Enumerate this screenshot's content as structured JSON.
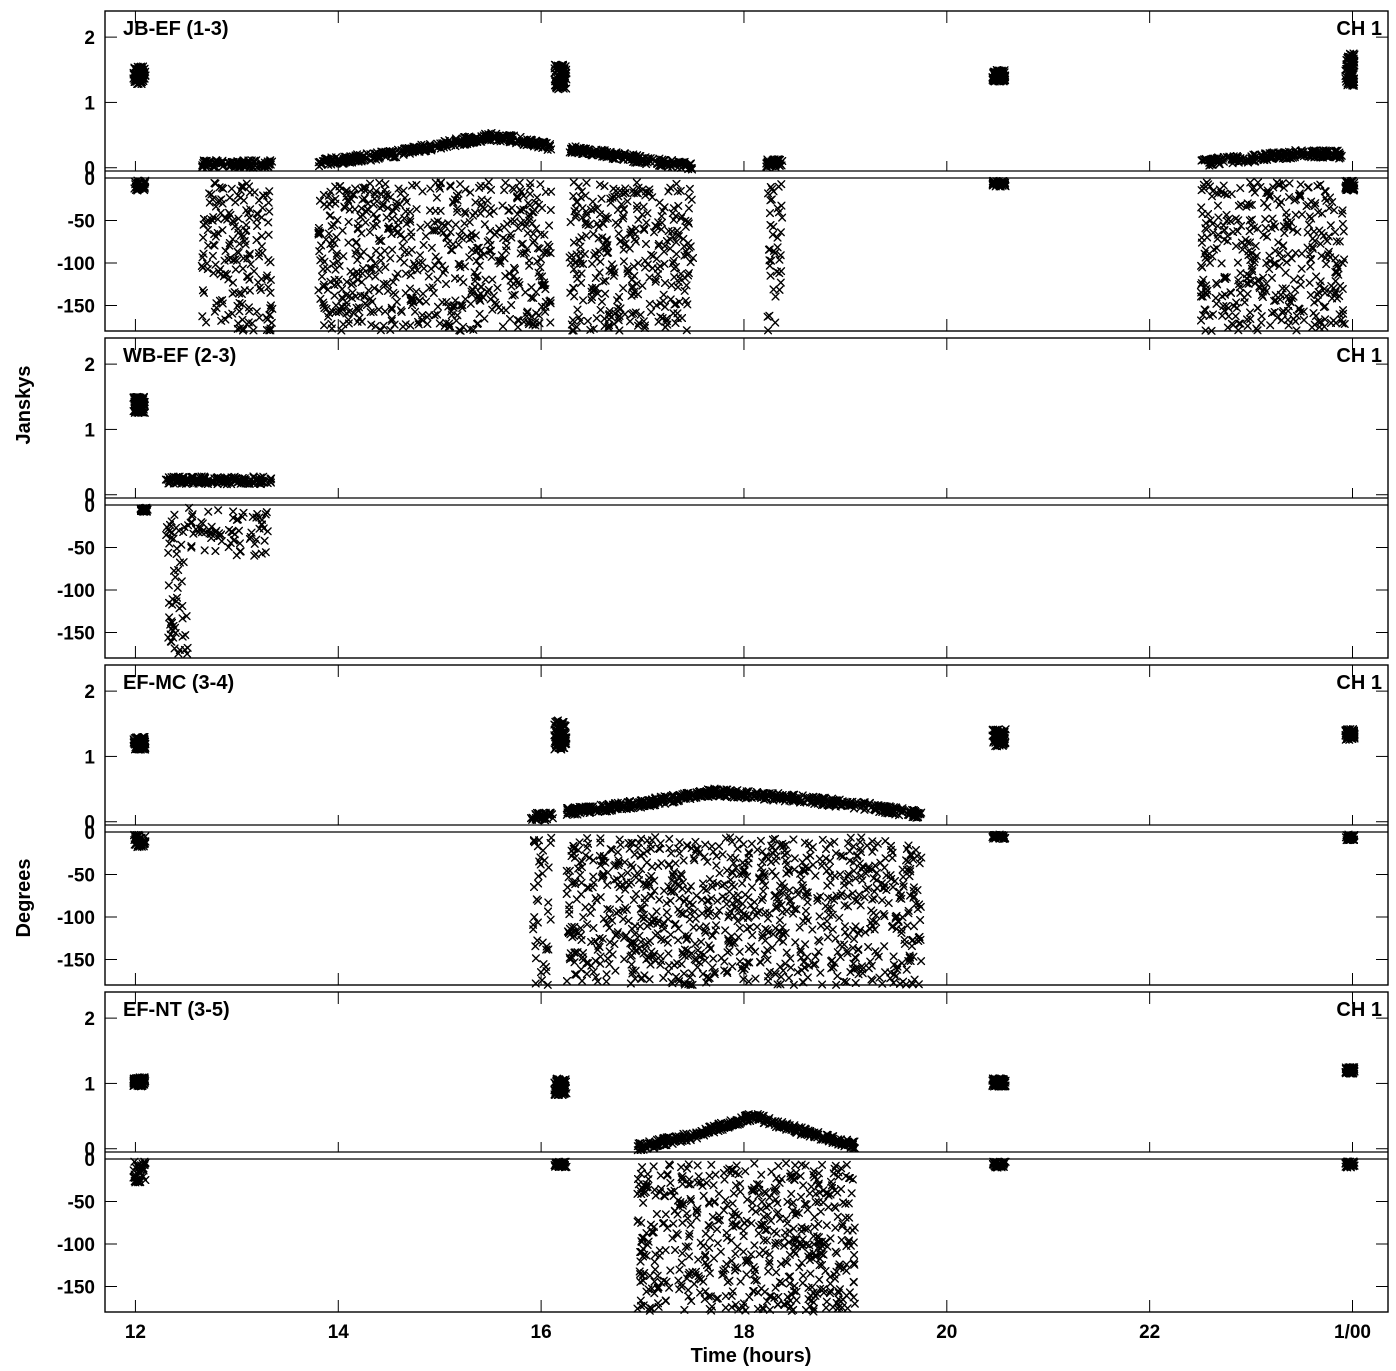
{
  "figure": {
    "xlabel": "Time (hours)",
    "ylabel_top": "Janskys",
    "ylabel_bottom": "Degrees",
    "x_ticks": [
      12,
      14,
      16,
      18,
      20,
      22,
      24
    ],
    "x_tick_labels": [
      "12",
      "14",
      "16",
      "18",
      "20",
      "22",
      "1/00"
    ],
    "x_range": [
      11.7,
      24.35
    ]
  },
  "chart_data": [
    {
      "type": "scatter",
      "title": "JB-EF (1-3)",
      "channel": "CH 1",
      "amplitude": {
        "ylim": [
          -0.05,
          2.4
        ],
        "y_ticks": [
          0,
          1,
          2
        ],
        "groups": [
          {
            "x": [
              11.98,
              12.1
            ],
            "y": [
              1.28,
              1.55
            ]
          },
          {
            "x": [
              16.13,
              16.25
            ],
            "y": [
              1.2,
              1.58
            ]
          },
          {
            "x": [
              20.45,
              20.58
            ],
            "y": [
              1.32,
              1.5
            ]
          },
          {
            "x": [
              23.93,
              24.02
            ],
            "y": [
              1.25,
              1.75
            ]
          }
        ],
        "arcs": [
          {
            "x": [
              12.65,
              13.35
            ],
            "y": [
              0.06,
              0.06
            ]
          },
          {
            "x": [
              13.8,
              14.5,
              15.0,
              15.5,
              15.8,
              16.1
            ],
            "y": [
              0.08,
              0.2,
              0.35,
              0.48,
              0.42,
              0.32
            ]
          },
          {
            "x": [
              16.28,
              16.6,
              17.0,
              17.5
            ],
            "y": [
              0.28,
              0.22,
              0.12,
              0.02
            ]
          },
          {
            "x": [
              18.22,
              18.38
            ],
            "y": [
              0.07,
              0.07
            ]
          },
          {
            "x": [
              22.5,
              23.0,
              23.5,
              23.9
            ],
            "y": [
              0.08,
              0.14,
              0.22,
              0.2
            ]
          }
        ]
      },
      "phase": {
        "ylim": [
          -180,
          0
        ],
        "y_ticks": [
          0,
          -50,
          -100,
          -150
        ],
        "blocks": [
          {
            "x": [
              12.65,
              13.35
            ],
            "y": [
              -180,
              -5
            ]
          },
          {
            "x": [
              13.8,
              16.1
            ],
            "y": [
              -180,
              -5
            ]
          },
          {
            "x": [
              16.28,
              17.5
            ],
            "y": [
              -180,
              -5
            ]
          },
          {
            "x": [
              22.5,
              23.93
            ],
            "y": [
              -180,
              -5
            ]
          }
        ],
        "sparse": [
          {
            "x": [
              18.22,
              18.38
            ],
            "y": [
              -180,
              -5
            ]
          },
          {
            "x": [
              11.98,
              12.1
            ],
            "y": [
              -15,
              -3
            ]
          },
          {
            "x": [
              20.45,
              20.58
            ],
            "y": [
              -10,
              -3
            ]
          },
          {
            "x": [
              23.93,
              24.02
            ],
            "y": [
              -15,
              -3
            ]
          }
        ]
      }
    },
    {
      "type": "scatter",
      "title": "WB-EF (2-3)",
      "channel": "CH 1",
      "amplitude": {
        "ylim": [
          -0.05,
          2.4
        ],
        "y_ticks": [
          0,
          1,
          2
        ],
        "groups": [
          {
            "x": [
              11.98,
              12.1
            ],
            "y": [
              1.25,
              1.5
            ]
          }
        ],
        "arcs": [
          {
            "x": [
              12.3,
              13.35
            ],
            "y": [
              0.22,
              0.22
            ]
          }
        ]
      },
      "phase": {
        "ylim": [
          -180,
          0
        ],
        "y_ticks": [
          0,
          -50,
          -100,
          -150
        ],
        "blocks": [
          {
            "x": [
              12.3,
              13.35
            ],
            "y": [
              -35,
              -3
            ]
          }
        ],
        "sparse": [
          {
            "x": [
              12.3,
              13.35
            ],
            "y": [
              -60,
              -30
            ]
          },
          {
            "x": [
              12.32,
              12.52
            ],
            "y": [
              -180,
              -55
            ]
          },
          {
            "x": [
              12.05,
              12.12
            ],
            "y": [
              -8,
              -3
            ]
          }
        ]
      }
    },
    {
      "type": "scatter",
      "title": "EF-MC (3-4)",
      "channel": "CH 1",
      "amplitude": {
        "ylim": [
          -0.05,
          2.4
        ],
        "y_ticks": [
          0,
          1,
          2
        ],
        "groups": [
          {
            "x": [
              11.98,
              12.1
            ],
            "y": [
              1.1,
              1.3
            ]
          },
          {
            "x": [
              16.13,
              16.25
            ],
            "y": [
              1.1,
              1.55
            ]
          },
          {
            "x": [
              20.45,
              20.58
            ],
            "y": [
              1.15,
              1.42
            ]
          },
          {
            "x": [
              23.93,
              24.02
            ],
            "y": [
              1.25,
              1.42
            ]
          }
        ],
        "arcs": [
          {
            "x": [
              15.9,
              16.12
            ],
            "y": [
              0.08,
              0.08
            ]
          },
          {
            "x": [
              16.25,
              17.0,
              17.7,
              18.5,
              19.2,
              19.75
            ],
            "y": [
              0.15,
              0.28,
              0.45,
              0.36,
              0.24,
              0.1
            ]
          }
        ]
      },
      "phase": {
        "ylim": [
          -180,
          0
        ],
        "y_ticks": [
          0,
          -50,
          -100,
          -150
        ],
        "blocks": [
          {
            "x": [
              16.25,
              19.75
            ],
            "y": [
              -180,
              -5
            ]
          }
        ],
        "sparse": [
          {
            "x": [
              15.9,
              16.1
            ],
            "y": [
              -180,
              -5
            ]
          },
          {
            "x": [
              11.98,
              12.1
            ],
            "y": [
              -18,
              -3
            ]
          },
          {
            "x": [
              20.45,
              20.58
            ],
            "y": [
              -8,
              -3
            ]
          },
          {
            "x": [
              23.93,
              24.02
            ],
            "y": [
              -10,
              -3
            ]
          }
        ]
      }
    },
    {
      "type": "scatter",
      "title": "EF-NT (3-5)",
      "channel": "CH 1",
      "amplitude": {
        "ylim": [
          -0.05,
          2.4
        ],
        "y_ticks": [
          0,
          1,
          2
        ],
        "groups": [
          {
            "x": [
              11.98,
              12.1
            ],
            "y": [
              0.95,
              1.1
            ]
          },
          {
            "x": [
              16.13,
              16.25
            ],
            "y": [
              0.82,
              1.08
            ]
          },
          {
            "x": [
              20.45,
              20.58
            ],
            "y": [
              0.95,
              1.08
            ]
          },
          {
            "x": [
              23.93,
              24.02
            ],
            "y": [
              1.15,
              1.25
            ]
          }
        ],
        "arcs": [
          {
            "x": [
              16.95,
              17.5,
              18.1,
              18.6,
              19.1
            ],
            "y": [
              0.02,
              0.2,
              0.5,
              0.25,
              0.05
            ]
          }
        ]
      },
      "phase": {
        "ylim": [
          -180,
          0
        ],
        "y_ticks": [
          0,
          -50,
          -100,
          -150
        ],
        "blocks": [
          {
            "x": [
              16.95,
              19.1
            ],
            "y": [
              -180,
              -5
            ]
          }
        ],
        "sparse": [
          {
            "x": [
              11.98,
              12.1
            ],
            "y": [
              -28,
              -3
            ]
          },
          {
            "x": [
              16.13,
              16.25
            ],
            "y": [
              -10,
              -3
            ]
          },
          {
            "x": [
              20.45,
              20.58
            ],
            "y": [
              -10,
              -3
            ]
          },
          {
            "x": [
              23.93,
              24.02
            ],
            "y": [
              -10,
              -3
            ]
          }
        ]
      }
    }
  ]
}
